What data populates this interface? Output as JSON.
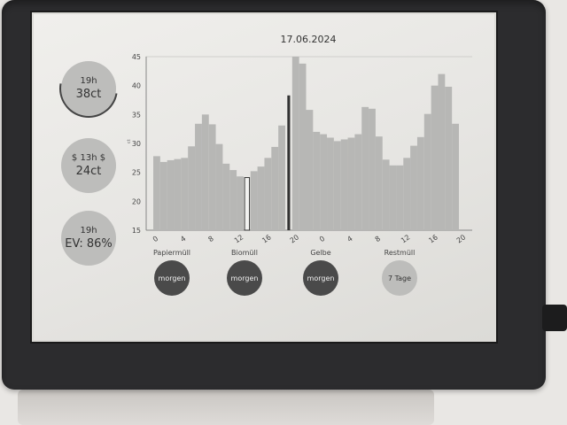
{
  "date": "17.06.2024",
  "stats": [
    {
      "top": "19h",
      "main": "38ct",
      "ring": true
    },
    {
      "top": "$ 13h $",
      "main": "24ct",
      "ring": false
    },
    {
      "top": "19h",
      "main": "EV: 86%",
      "ring": false
    }
  ],
  "chart_data": {
    "type": "bar",
    "title": "17.06.2024",
    "ylabel": "ct",
    "ylim": [
      15,
      45
    ],
    "y_ticks": [
      15,
      20,
      25,
      30,
      35,
      40,
      45
    ],
    "x_tick_labels": [
      "0",
      "4",
      "8",
      "12",
      "16",
      "20",
      "0",
      "4",
      "8",
      "12",
      "16",
      "20"
    ],
    "values": [
      27.8,
      26.8,
      27.1,
      27.3,
      27.5,
      29.5,
      33.4,
      35.0,
      33.3,
      29.9,
      26.5,
      25.4,
      24.3,
      24.1,
      25.2,
      26.0,
      27.5,
      29.4,
      33.1,
      38.3,
      45.0,
      43.8,
      35.8,
      32.0,
      31.6,
      31.0,
      30.4,
      30.7,
      31.0,
      31.6,
      36.3,
      36.0,
      31.2,
      27.2,
      26.2,
      26.2,
      27.5,
      29.6,
      31.1,
      35.1,
      40.0,
      42.0,
      39.8,
      33.4
    ],
    "lowest_hour_index": 13,
    "current_hour_index": 19,
    "colors": {
      "bars": "#b7b7b5",
      "highlight": "#333333",
      "lowest_outline": "#333333"
    }
  },
  "waste": [
    {
      "label": "Papiermüll",
      "value": "morgen",
      "dark": true
    },
    {
      "label": "Biomüll",
      "value": "morgen",
      "dark": true
    },
    {
      "label": "Gelbe",
      "value": "morgen",
      "dark": true
    },
    {
      "label": "Restmüll",
      "value": "7 Tage",
      "dark": false
    }
  ]
}
